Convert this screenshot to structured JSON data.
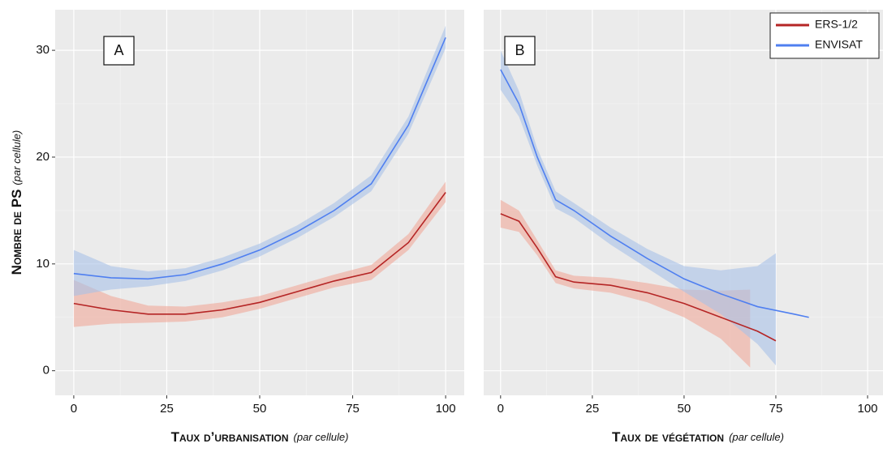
{
  "chart_data": [
    {
      "type": "line",
      "panel_label": "A",
      "xlabel": "Taux d’urbanisation",
      "xlabel_note": "(par cellule)",
      "ylabel": "Nombre de PS",
      "ylabel_note": "(par cellule)",
      "xlim": [
        -5,
        105
      ],
      "xticks": [
        0,
        25,
        50,
        75,
        100
      ],
      "ylim": [
        -2.3,
        33.8
      ],
      "yticks": [
        0,
        10,
        20,
        30
      ],
      "show_ytick_labels": true,
      "grid": true,
      "series": [
        {
          "color": "#b52525",
          "band_color": "#f0a89a",
          "x": [
            0,
            10,
            20,
            30,
            40,
            50,
            60,
            70,
            80,
            90,
            100
          ],
          "values": [
            6.3,
            5.7,
            5.3,
            5.3,
            5.7,
            6.4,
            7.4,
            8.4,
            9.2,
            12,
            16.7
          ],
          "band": {
            "x": [
              0,
              10,
              20,
              30,
              40,
              50,
              60,
              70,
              80,
              90,
              100
            ],
            "lower": [
              4.1,
              4.4,
              4.5,
              4.6,
              5.0,
              5.8,
              6.8,
              7.8,
              8.5,
              11.3,
              15.8
            ],
            "upper": [
              8.5,
              7.0,
              6.1,
              6.0,
              6.4,
              7.0,
              8.0,
              9.0,
              9.9,
              12.8,
              17.7
            ]
          }
        },
        {
          "color": "#4f7ff0",
          "band_color": "#a9c1e8",
          "x": [
            0,
            10,
            20,
            30,
            40,
            50,
            60,
            70,
            80,
            90,
            100
          ],
          "values": [
            9.1,
            8.7,
            8.6,
            9.0,
            10.0,
            11.3,
            13.0,
            15.0,
            17.5,
            23,
            31.2
          ],
          "band": {
            "x": [
              0,
              10,
              20,
              30,
              40,
              50,
              60,
              70,
              80,
              90,
              100
            ],
            "lower": [
              7.0,
              7.6,
              7.9,
              8.4,
              9.4,
              10.7,
              12.4,
              14.4,
              16.8,
              22.2,
              30.2
            ],
            "upper": [
              11.3,
              9.8,
              9.3,
              9.6,
              10.6,
              11.9,
              13.6,
              15.7,
              18.3,
              23.8,
              32.3
            ]
          }
        }
      ]
    },
    {
      "type": "line",
      "panel_label": "B",
      "xlabel": "Taux de végétation",
      "xlabel_note": "(par cellule)",
      "xlim": [
        -4.6,
        104.2
      ],
      "xticks": [
        0,
        25,
        50,
        75,
        100
      ],
      "ylim": [
        -2.3,
        33.8
      ],
      "yticks": [
        0,
        10,
        20,
        30
      ],
      "show_ytick_labels": false,
      "grid": true,
      "legend": "top-right",
      "series": [
        {
          "name": "ERS-1/2",
          "color": "#b52525",
          "band_color": "#f0a89a",
          "x": [
            0,
            5,
            10,
            15,
            20,
            30,
            40,
            50,
            60,
            70,
            75
          ],
          "values": [
            14.7,
            14.0,
            11.5,
            8.8,
            8.3,
            8.0,
            7.3,
            6.3,
            5.0,
            3.7,
            2.8
          ],
          "band": {
            "x": [
              0,
              5,
              10,
              15,
              20,
              30,
              40,
              50,
              60,
              68
            ],
            "lower": [
              13.4,
              13.0,
              10.8,
              8.2,
              7.7,
              7.3,
              6.4,
              5.0,
              3.0,
              0.3
            ],
            "upper": [
              16.0,
              15.0,
              12.2,
              9.4,
              8.9,
              8.7,
              8.2,
              7.6,
              7.5,
              7.6
            ]
          }
        },
        {
          "name": "ENVISAT",
          "color": "#4f7ff0",
          "band_color": "#a9c1e8",
          "x": [
            0,
            5,
            10,
            15,
            20,
            30,
            40,
            50,
            60,
            70,
            80,
            84
          ],
          "values": [
            28.2,
            25.0,
            20.0,
            16.0,
            15.0,
            12.6,
            10.5,
            8.6,
            7.2,
            6.0,
            5.3,
            5.0
          ],
          "band": {
            "x": [
              0,
              5,
              10,
              15,
              20,
              30,
              40,
              50,
              60,
              70,
              75
            ],
            "lower": [
              26.3,
              23.8,
              19.2,
              15.2,
              14.3,
              11.8,
              9.6,
              7.4,
              5.3,
              2.5,
              0.5
            ],
            "upper": [
              30.0,
              26.2,
              20.8,
              16.8,
              15.7,
              13.4,
              11.4,
              9.8,
              9.4,
              9.8,
              11.0
            ]
          }
        }
      ]
    }
  ]
}
